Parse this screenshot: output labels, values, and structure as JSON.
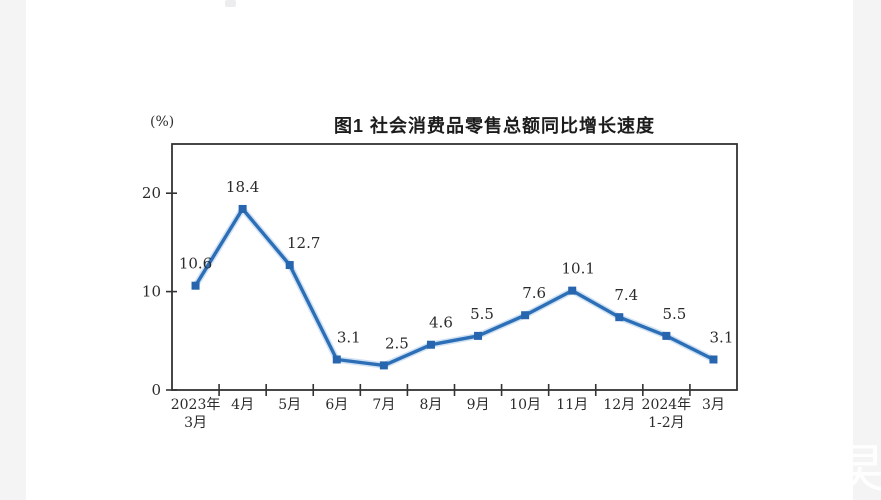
{
  "page": {
    "watermark": "旲",
    "background_color": "#ffffff",
    "gutter_color": "#f4f4f5"
  },
  "chart_data": {
    "type": "line",
    "title": "图1  社会消费品零售总额同比增长速度",
    "unit_label": "(%)",
    "categories": [
      [
        "2023年",
        "3月"
      ],
      [
        "4月"
      ],
      [
        "5月"
      ],
      [
        "6月"
      ],
      [
        "7月"
      ],
      [
        "8月"
      ],
      [
        "9月"
      ],
      [
        "10月"
      ],
      [
        "11月"
      ],
      [
        "12月"
      ],
      [
        "2024年",
        "1-2月"
      ],
      [
        "3月"
      ]
    ],
    "values": [
      10.6,
      18.4,
      12.7,
      3.1,
      2.5,
      4.6,
      5.5,
      7.6,
      10.1,
      7.4,
      5.5,
      3.1
    ],
    "value_labels": [
      "10.6",
      "18.4",
      "12.7",
      "3.1",
      "2.5",
      "4.6",
      "5.5",
      "7.6",
      "10.1",
      "7.4",
      "5.5",
      "3.1"
    ],
    "yticks": [
      "0",
      "10",
      "20"
    ],
    "ytick_values": [
      0,
      10,
      20
    ],
    "ylim": [
      0,
      25
    ],
    "grid": false,
    "legend": "none",
    "line_color": "#2c6fb7",
    "line_halo_color": "#a9cbe9",
    "marker_color": "#2765ae",
    "axis_color": "#333333",
    "text_color": "#2b2b2b",
    "label_dx": [
      0,
      0,
      14,
      12,
      13,
      10,
      4,
      9,
      6,
      7,
      8,
      8
    ],
    "label_dy": -22
  }
}
